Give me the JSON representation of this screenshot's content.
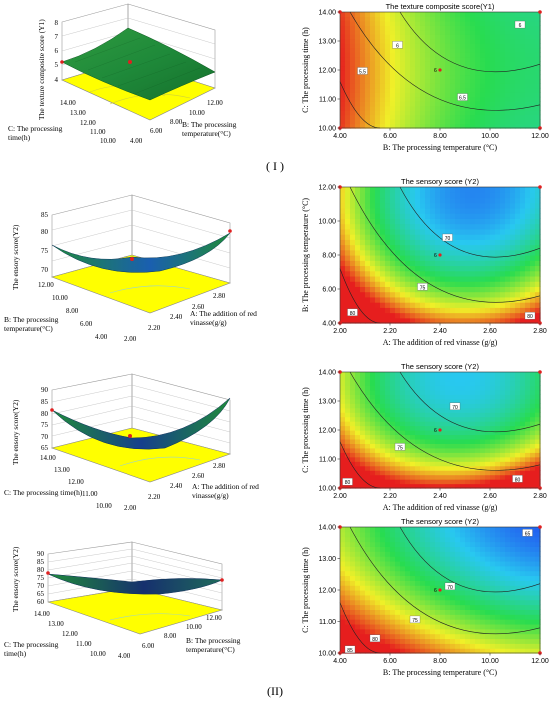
{
  "section_labels": [
    "( I )",
    "(II)"
  ],
  "colors": {
    "surface_green": "#1f8a3a",
    "surface_blue": "#1a4fd6",
    "floor_yellow": "#ffff00",
    "contour_red": "#d91a1a",
    "contour_yellow": "#f2ef1f",
    "contour_green": "#1fd24d",
    "contour_cyan": "#3bd6e6",
    "contour_blue": "#1e46e6",
    "point_red": "#e02020"
  },
  "chart_data": [
    {
      "type": "surface",
      "zlabel": "The texture composite score (Y1)",
      "xlabel": "B: The processing temperature(°C)",
      "ylabel": "C: The processing time(h)",
      "zticks": [
        "4",
        "5",
        "6",
        "7",
        "8"
      ],
      "xticks": [
        "4.00",
        "6.00",
        "8.00",
        "10.00",
        "12.00"
      ],
      "yticks": [
        "10.00",
        "11.00",
        "12.00",
        "13.00",
        "14.00"
      ],
      "zlim": [
        4,
        8
      ]
    },
    {
      "type": "contour",
      "title": "The texture composite score(Y1)",
      "xlabel": "B: The processing temperature (°C)",
      "ylabel": "C: The processing time (h)",
      "xticks": [
        "4.00",
        "6.00",
        "8.00",
        "10.00",
        "12.00"
      ],
      "yticks": [
        "10.00",
        "11.00",
        "12.00",
        "13.00",
        "14.00"
      ],
      "xlim": [
        4,
        12
      ],
      "ylim": [
        10,
        14
      ],
      "contour_labels": [
        {
          "text": "5.5",
          "x": 4.9,
          "y": 11.95
        },
        {
          "text": "6",
          "x": 6.3,
          "y": 12.85
        },
        {
          "text": "6.5",
          "x": 8.9,
          "y": 11.05
        },
        {
          "text": "6",
          "x": 11.2,
          "y": 13.55
        }
      ],
      "center_label": "6",
      "center_point": {
        "x": 8,
        "y": 12
      }
    },
    {
      "type": "surface",
      "zlabel": "The ensory score(Y2)",
      "xlabel": "A: The addition of red vinasse(g/g)",
      "ylabel": "B: The processing temperature(°C)",
      "zticks": [
        "70",
        "75",
        "80",
        "85"
      ],
      "xticks": [
        "2.00",
        "2.20",
        "2.40",
        "2.60",
        "2.80"
      ],
      "yticks": [
        "4.00",
        "6.00",
        "8.00",
        "10.00",
        "12.00"
      ],
      "zlim": [
        70,
        85
      ]
    },
    {
      "type": "contour",
      "title": "The sensory score (Y2)",
      "xlabel": "A: The addition of red vinasse (g/g)",
      "ylabel": "B: The processing temperature (°C)",
      "xticks": [
        "2.00",
        "2.20",
        "2.40",
        "2.60",
        "2.80"
      ],
      "yticks": [
        "4.00",
        "6.00",
        "8.00",
        "10.00",
        "12.00"
      ],
      "xlim": [
        2,
        2.8
      ],
      "ylim": [
        4,
        12
      ],
      "contour_labels": [
        {
          "text": "70",
          "x": 2.43,
          "y": 9.0
        },
        {
          "text": "75",
          "x": 2.33,
          "y": 6.1
        },
        {
          "text": "80",
          "x": 2.05,
          "y": 4.6
        },
        {
          "text": "80",
          "x": 2.76,
          "y": 4.4
        }
      ],
      "center_label": "6",
      "center_point": {
        "x": 2.4,
        "y": 8
      }
    },
    {
      "type": "surface",
      "zlabel": "The ensory score(Y2)",
      "xlabel": "A: The addition of red vinasse(g/g)",
      "ylabel": "C: The processing time(h)",
      "zticks": [
        "65",
        "70",
        "75",
        "80",
        "85",
        "90"
      ],
      "xticks": [
        "2.00",
        "2.20",
        "2.40",
        "2.60",
        "2.80"
      ],
      "yticks": [
        "10.00",
        "11.00",
        "12.00",
        "13.00",
        "14.00"
      ],
      "zlim": [
        65,
        90
      ]
    },
    {
      "type": "contour",
      "title": "The sensory score (Y2)",
      "xlabel": "A: The addition of red vinasse (g/g)",
      "ylabel": "C: The processing time (h)",
      "xticks": [
        "2.00",
        "2.20",
        "2.40",
        "2.60",
        "2.80"
      ],
      "yticks": [
        "10.00",
        "11.00",
        "12.00",
        "13.00",
        "14.00"
      ],
      "xlim": [
        2,
        2.8
      ],
      "ylim": [
        10,
        14
      ],
      "contour_labels": [
        {
          "text": "70",
          "x": 2.46,
          "y": 12.8
        },
        {
          "text": "75",
          "x": 2.24,
          "y": 11.4
        },
        {
          "text": "80",
          "x": 2.03,
          "y": 10.2
        },
        {
          "text": "80",
          "x": 2.71,
          "y": 10.3
        }
      ],
      "center_label": "6",
      "center_point": {
        "x": 2.4,
        "y": 12
      }
    },
    {
      "type": "surface",
      "zlabel": "The ensory score(Y2)",
      "xlabel": "B: The processing temperature(°C)",
      "ylabel": "C: The processing time(h)",
      "zticks": [
        "60",
        "65",
        "70",
        "75",
        "80",
        "85",
        "90"
      ],
      "xticks": [
        "4.00",
        "6.00",
        "8.00",
        "10.00",
        "12.00"
      ],
      "yticks": [
        "10.00",
        "11.00",
        "12.00",
        "13.00",
        "14.00"
      ],
      "zlim": [
        60,
        90
      ]
    },
    {
      "type": "contour",
      "title": "The sensory score (Y2)",
      "xlabel": "B: The processing temperature (°C)",
      "ylabel": "C: The processing time (h)",
      "xticks": [
        "4.00",
        "6.00",
        "8.00",
        "10.00",
        "12.00"
      ],
      "yticks": [
        "10.00",
        "11.00",
        "12.00",
        "13.00",
        "14.00"
      ],
      "xlim": [
        4,
        12
      ],
      "ylim": [
        10,
        14
      ],
      "contour_labels": [
        {
          "text": "70",
          "x": 8.4,
          "y": 12.1
        },
        {
          "text": "75",
          "x": 7.0,
          "y": 11.05
        },
        {
          "text": "80",
          "x": 5.4,
          "y": 10.45
        },
        {
          "text": "85",
          "x": 4.4,
          "y": 10.1
        },
        {
          "text": "65",
          "x": 11.5,
          "y": 13.8
        }
      ],
      "center_label": "6",
      "center_point": {
        "x": 8,
        "y": 12
      }
    }
  ]
}
